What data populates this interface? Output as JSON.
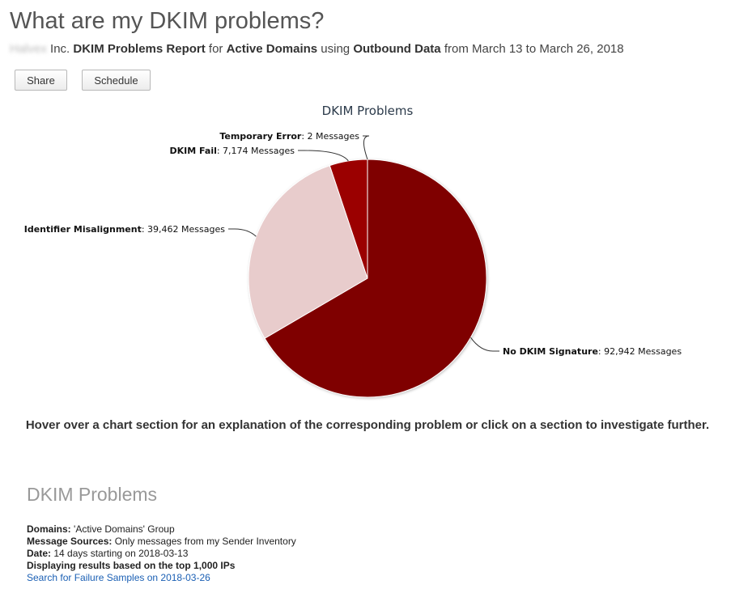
{
  "page": {
    "title": "What are my DKIM problems?",
    "org_redacted": "Halvex",
    "org_suffix": " Inc. ",
    "report_name": "DKIM Problems Report",
    "for_text": " for ",
    "domain_scope": "Active Domains",
    "using_text": " using ",
    "data_source": "Outbound Data",
    "date_range": " from March 13 to March 26, 2018"
  },
  "toolbar": {
    "share_label": "Share",
    "schedule_label": "Schedule"
  },
  "chart_data": {
    "type": "pie",
    "title": "DKIM Problems",
    "unit": "Messages",
    "slices": [
      {
        "name": "No DKIM Signature",
        "value": 92942,
        "value_label": "92,942",
        "color": "#7f0000"
      },
      {
        "name": "Identifier Misalignment",
        "value": 39462,
        "value_label": "39,462",
        "color": "#e8cccc"
      },
      {
        "name": "DKIM Fail",
        "value": 7174,
        "value_label": "7,174",
        "color": "#9b0000"
      },
      {
        "name": "Temporary Error",
        "value": 2,
        "value_label": "2",
        "color": "#cc0000"
      }
    ]
  },
  "hover_note": "Hover over a chart section for an explanation of the corresponding problem or click on a section to investigate further.",
  "details": {
    "section_title": "DKIM Problems",
    "domains_label": "Domains:",
    "domains_value": " 'Active Domains' Group",
    "sources_label": "Message Sources:",
    "sources_value": " Only messages from my Sender Inventory",
    "date_label": "Date:",
    "date_value": " 14 days starting on 2018-03-13",
    "displaying": "Displaying results based on the top 1,000 IPs",
    "link": "Search for Failure Samples on 2018-03-26"
  }
}
